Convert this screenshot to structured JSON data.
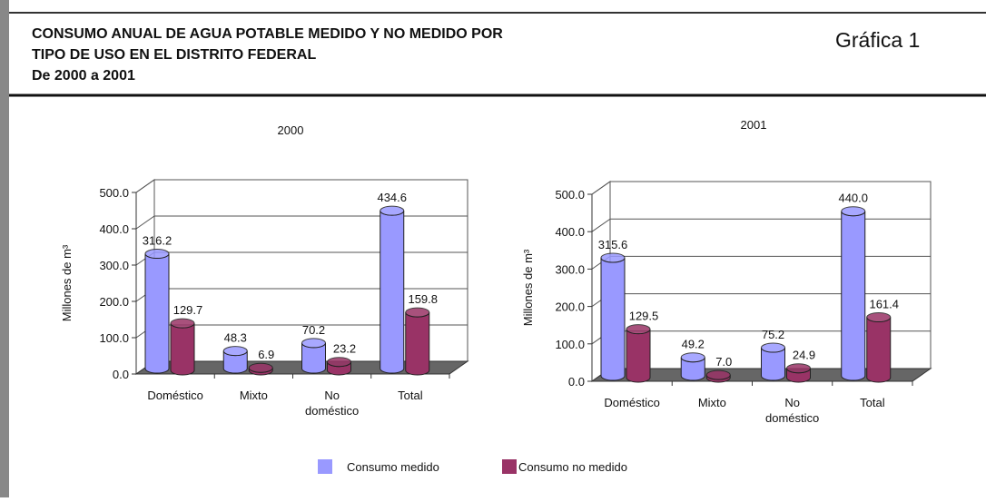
{
  "header": {
    "title_lines": [
      "CONSUMO ANUAL DE AGUA POTABLE MEDIDO Y NO MEDIDO POR",
      "TIPO DE USO EN EL DISTRITO FEDERAL",
      "De 2000 a 2001"
    ],
    "label": "Gráfica 1"
  },
  "chart_data": [
    {
      "type": "bar3d",
      "title": "2000",
      "y_label": "Millones de m³",
      "categories": [
        "Doméstico",
        "Mixto",
        "No doméstico",
        "Total"
      ],
      "series": [
        {
          "name": "Consumo medido",
          "color": "#9999ff",
          "values": [
            316.2,
            48.3,
            70.2,
            434.6
          ],
          "value_labels": [
            "316.2",
            "48.3",
            "70.2",
            "434.6"
          ]
        },
        {
          "name": "Consumo no medido",
          "color": "#993366",
          "values": [
            129.7,
            6.9,
            23.2,
            159.8
          ],
          "value_labels": [
            "129.7",
            "6.9",
            "23.2",
            "159.8"
          ]
        }
      ],
      "ylim": [
        0,
        500
      ],
      "yticks": [
        {
          "value": 0,
          "label": "0.0"
        },
        {
          "value": 100,
          "label": "100.0"
        },
        {
          "value": 200,
          "label": "200.0"
        },
        {
          "value": 300,
          "label": "300.0"
        },
        {
          "value": 400,
          "label": "400.0"
        },
        {
          "value": 500,
          "label": "500.0"
        }
      ],
      "grid": true
    },
    {
      "type": "bar3d",
      "title": "2001",
      "y_label": "Millones de m³",
      "categories": [
        "Doméstico",
        "Mixto",
        "No doméstico",
        "Total"
      ],
      "series": [
        {
          "name": "Consumo medido",
          "color": "#9999ff",
          "values": [
            315.6,
            49.2,
            75.2,
            440.0
          ],
          "value_labels": [
            "315.6",
            "49.2",
            "75.2",
            "440.0"
          ]
        },
        {
          "name": "Consumo no medido",
          "color": "#993366",
          "values": [
            129.5,
            7.0,
            24.9,
            161.4
          ],
          "value_labels": [
            "129.5",
            "7.0",
            "24.9",
            "161.4"
          ]
        }
      ],
      "ylim": [
        0,
        500
      ],
      "yticks": [
        {
          "value": 0,
          "label": "0.0"
        },
        {
          "value": 100,
          "label": "100.0"
        },
        {
          "value": 200,
          "label": "200.0"
        },
        {
          "value": 300,
          "label": "300.0"
        },
        {
          "value": 400,
          "label": "400.0"
        },
        {
          "value": 500,
          "label": "500.0"
        }
      ],
      "grid": true
    }
  ]
}
